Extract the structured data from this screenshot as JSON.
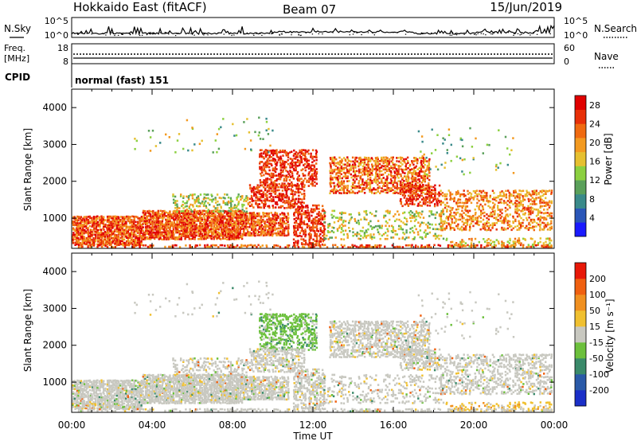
{
  "header": {
    "title": "Hokkaido East (fitACF)",
    "beam": "Beam 07",
    "date": "15/Jun/2019"
  },
  "noise_panel": {
    "left_label": "N.Sky",
    "right_label": "N.Search",
    "left_ticks": [
      "10^5",
      "10^0"
    ],
    "right_ticks": [
      "10^5",
      "10^0"
    ]
  },
  "freq_panel": {
    "left_label_1": "Freq.",
    "left_label_2": "[MHz]",
    "left_ticks": [
      "18",
      "8"
    ],
    "right_label": "Nave",
    "right_ticks": [
      "60",
      "0"
    ]
  },
  "cpid": {
    "label": "CPID",
    "value": "normal (fast) 151"
  },
  "chart_data": [
    {
      "type": "heatmap",
      "quantity": "Power",
      "ylabel": "Slant Range [km]",
      "xlabel": "",
      "x_ticks": [
        "00:00",
        "04:00",
        "08:00",
        "12:00",
        "16:00",
        "20:00",
        "00:00"
      ],
      "x_range_hours": [
        0,
        24
      ],
      "y_ticks": [
        1000,
        2000,
        3000,
        4000
      ],
      "ylim": [
        180,
        4500
      ],
      "colorbar": {
        "label": "Power [dB]",
        "ticks": [
          "4",
          "8",
          "12",
          "16",
          "20",
          "24",
          "28"
        ],
        "colors": [
          "#1a1aff",
          "#2a56b8",
          "#3a8a8a",
          "#5aa05a",
          "#8cd040",
          "#e6c030",
          "#f39a20",
          "#f06a10",
          "#e83008",
          "#e00000"
        ]
      }
    },
    {
      "type": "heatmap",
      "quantity": "Velocity",
      "ylabel": "Slant Range [km]",
      "xlabel": "Time UT",
      "x_ticks": [
        "00:00",
        "04:00",
        "08:00",
        "12:00",
        "16:00",
        "20:00",
        "00:00"
      ],
      "x_range_hours": [
        0,
        24
      ],
      "y_ticks": [
        1000,
        2000,
        3000,
        4000
      ],
      "ylim": [
        180,
        4500
      ],
      "colorbar": {
        "label": "Velocity [m s⁻¹]",
        "ticks": [
          "200",
          "100",
          "50",
          "15",
          "-15",
          "-50",
          "-100",
          "-200"
        ],
        "colors": [
          "#1a2fc8",
          "#2a5aa8",
          "#3a8a6a",
          "#6cc03c",
          "#c8c8c0",
          "#f0c030",
          "#f09020",
          "#f06010",
          "#e81808"
        ]
      }
    }
  ],
  "colors": {
    "frame": "#000000",
    "background": "#ffffff",
    "velocity_zero": "#c8c8c0"
  }
}
